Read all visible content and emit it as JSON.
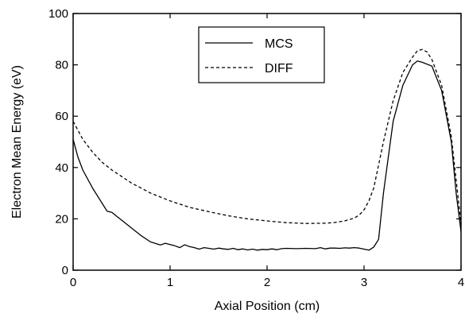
{
  "chart_data": {
    "type": "line",
    "xlabel": "Axial Position (cm)",
    "ylabel": "Electron Mean Energy (eV)",
    "xlim": [
      0,
      4
    ],
    "ylim": [
      0,
      100
    ],
    "x_ticks": [
      0,
      1,
      2,
      3,
      4
    ],
    "y_ticks": [
      0,
      20,
      40,
      60,
      80,
      100
    ],
    "grid": false,
    "legend_position": "top-center",
    "series": [
      {
        "name": "MCS",
        "style": "solid",
        "color": "#000000",
        "x": [
          0,
          0.05,
          0.1,
          0.2,
          0.3,
          0.35,
          0.4,
          0.45,
          0.5,
          0.6,
          0.7,
          0.8,
          0.9,
          0.95,
          1.0,
          1.05,
          1.1,
          1.15,
          1.2,
          1.25,
          1.3,
          1.35,
          1.4,
          1.45,
          1.5,
          1.55,
          1.6,
          1.65,
          1.7,
          1.75,
          1.8,
          1.85,
          1.9,
          1.95,
          2.0,
          2.05,
          2.1,
          2.15,
          2.2,
          2.3,
          2.4,
          2.5,
          2.55,
          2.6,
          2.65,
          2.7,
          2.75,
          2.8,
          2.85,
          2.9,
          2.95,
          3.0,
          3.05,
          3.1,
          3.15,
          3.2,
          3.3,
          3.4,
          3.5,
          3.55,
          3.6,
          3.7,
          3.8,
          3.9,
          3.95,
          4.0
        ],
        "y": [
          51,
          44,
          39,
          32,
          26,
          23,
          22.5,
          21,
          19.5,
          16.5,
          13.5,
          11,
          9.8,
          10.5,
          10,
          9.5,
          8.8,
          9.9,
          9.2,
          8.8,
          8.2,
          8.8,
          8.5,
          8.2,
          8.6,
          8.3,
          8.1,
          8.5,
          8.0,
          8.3,
          7.9,
          8.2,
          7.8,
          8.1,
          8.0,
          8.3,
          8.0,
          8.4,
          8.5,
          8.4,
          8.5,
          8.4,
          8.8,
          8.3,
          8.6,
          8.6,
          8.5,
          8.7,
          8.6,
          8.8,
          8.6,
          8.2,
          7.8,
          9,
          12,
          30,
          58,
          72,
          80,
          81.5,
          81,
          79.5,
          70,
          50,
          30,
          15
        ]
      },
      {
        "name": "DIFF",
        "style": "dashed",
        "color": "#000000",
        "x": [
          0,
          0.1,
          0.2,
          0.3,
          0.4,
          0.5,
          0.6,
          0.7,
          0.8,
          0.9,
          1.0,
          1.2,
          1.4,
          1.6,
          1.8,
          2.0,
          2.2,
          2.4,
          2.6,
          2.7,
          2.8,
          2.9,
          2.95,
          3.0,
          3.05,
          3.1,
          3.2,
          3.3,
          3.4,
          3.5,
          3.55,
          3.6,
          3.65,
          3.7,
          3.8,
          3.9,
          4.0
        ],
        "y": [
          58,
          51,
          46,
          42,
          39,
          36.5,
          34,
          32,
          30,
          28.5,
          27,
          24.5,
          22.8,
          21.2,
          20,
          19.2,
          18.5,
          18.2,
          18.3,
          18.6,
          19.2,
          20.3,
          21.5,
          23.5,
          27,
          32,
          50,
          66,
          77,
          83,
          85.5,
          86,
          85,
          82,
          72,
          52,
          18
        ]
      }
    ]
  }
}
